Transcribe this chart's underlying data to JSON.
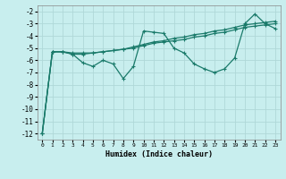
{
  "x": [
    0,
    1,
    2,
    3,
    4,
    5,
    6,
    7,
    8,
    9,
    10,
    11,
    12,
    13,
    14,
    15,
    16,
    17,
    18,
    19,
    20,
    21,
    22,
    23
  ],
  "line1": [
    -12,
    -5.3,
    -5.3,
    -5.5,
    -6.2,
    -6.5,
    -6.0,
    -6.3,
    -7.5,
    -6.5,
    -3.6,
    -3.7,
    -3.8,
    -5.0,
    -5.4,
    -6.3,
    -6.7,
    -7.0,
    -6.7,
    -5.8,
    -3.0,
    -2.2,
    -3.0,
    -3.4
  ],
  "line2": [
    -12,
    -5.3,
    -5.3,
    -5.5,
    -5.5,
    -5.4,
    -5.3,
    -5.2,
    -5.1,
    -5.0,
    -4.8,
    -4.6,
    -4.5,
    -4.4,
    -4.3,
    -4.1,
    -4.0,
    -3.8,
    -3.7,
    -3.5,
    -3.3,
    -3.2,
    -3.1,
    -3.0
  ],
  "line3": [
    -12,
    -5.3,
    -5.3,
    -5.4,
    -5.4,
    -5.4,
    -5.3,
    -5.2,
    -5.1,
    -4.9,
    -4.7,
    -4.5,
    -4.4,
    -4.2,
    -4.1,
    -3.9,
    -3.8,
    -3.6,
    -3.5,
    -3.3,
    -3.1,
    -3.0,
    -2.9,
    -2.8
  ],
  "color": "#1a7a6a",
  "bg_color": "#c8eeee",
  "grid_color": "#afd8d8",
  "xlabel": "Humidex (Indice chaleur)",
  "ylim": [
    -12.5,
    -1.5
  ],
  "xlim": [
    -0.5,
    23.5
  ],
  "yticks": [
    -12,
    -11,
    -10,
    -9,
    -8,
    -7,
    -6,
    -5,
    -4,
    -3,
    -2
  ],
  "xticks": [
    0,
    1,
    2,
    3,
    4,
    5,
    6,
    7,
    8,
    9,
    10,
    11,
    12,
    13,
    14,
    15,
    16,
    17,
    18,
    19,
    20,
    21,
    22,
    23
  ]
}
